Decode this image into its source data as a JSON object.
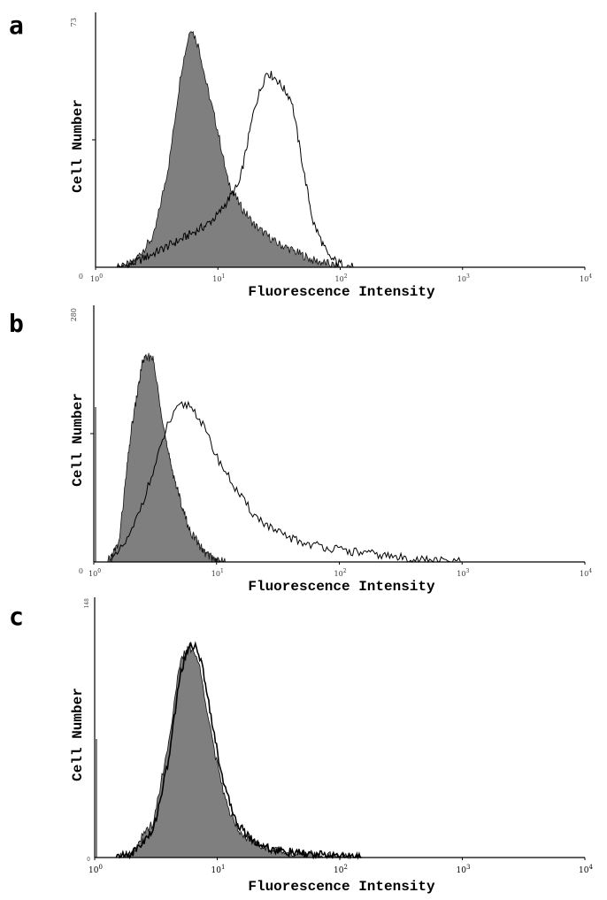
{
  "chart_data": [
    {
      "panel": "a",
      "type": "area",
      "xscale": "log",
      "xlim": [
        1,
        10000
      ],
      "ylim": [
        0,
        73
      ],
      "ytick_labels": [
        "0",
        "73"
      ],
      "xticks": [
        {
          "base": "10",
          "exp": "0"
        },
        {
          "base": "10",
          "exp": "1"
        },
        {
          "base": "10",
          "exp": "2"
        },
        {
          "base": "10",
          "exp": "3"
        },
        {
          "base": "10",
          "exp": "4"
        }
      ],
      "xlabel": "Fluorescence Intensity",
      "ylabel": "Cell Number",
      "series": [
        {
          "style": "filled-gray",
          "x": [
            1.5,
            2,
            3,
            4,
            5,
            6,
            7,
            8,
            10,
            12,
            15,
            20,
            30,
            40,
            60,
            80,
            100
          ],
          "y": [
            0,
            1,
            9,
            30,
            56,
            69,
            63,
            53,
            39,
            25,
            18,
            12,
            7,
            5,
            2,
            1,
            0
          ]
        },
        {
          "style": "outline",
          "x": [
            1.5,
            2,
            3,
            5,
            8,
            10,
            15,
            20,
            25,
            30,
            40,
            50,
            60,
            80,
            100,
            130
          ],
          "y": [
            0,
            1,
            4,
            8,
            12,
            15,
            24,
            46,
            56,
            54,
            48,
            28,
            13,
            3,
            1,
            0
          ]
        }
      ]
    },
    {
      "panel": "b",
      "type": "area",
      "xscale": "log",
      "xlim": [
        1,
        10000
      ],
      "ylim": [
        0,
        280
      ],
      "ytick_labels": [
        "0",
        "280"
      ],
      "xticks": [
        {
          "base": "10",
          "exp": "0"
        },
        {
          "base": "10",
          "exp": "1"
        },
        {
          "base": "10",
          "exp": "2"
        },
        {
          "base": "10",
          "exp": "3"
        },
        {
          "base": "10",
          "exp": "4"
        }
      ],
      "xlabel": "Fluorescence Intensity",
      "ylabel": "Cell Number",
      "series": [
        {
          "style": "filled-gray",
          "x": [
            1.3,
            1.6,
            2,
            2.5,
            3,
            3.5,
            4,
            5,
            6,
            8,
            10,
            12
          ],
          "y": [
            0,
            20,
            140,
            220,
            225,
            170,
            120,
            70,
            35,
            10,
            2,
            0
          ]
        },
        {
          "style": "outline",
          "x": [
            1.3,
            1.5,
            2,
            3,
            4,
            5,
            6,
            7,
            8,
            10,
            15,
            20,
            30,
            50,
            80,
            100,
            200,
            300,
            500,
            1000
          ],
          "y": [
            0,
            5,
            30,
            95,
            150,
            170,
            172,
            160,
            145,
            115,
            75,
            52,
            33,
            21,
            16,
            13,
            8,
            5,
            2,
            0
          ]
        }
      ]
    },
    {
      "panel": "c",
      "type": "area",
      "xscale": "log",
      "xlim": [
        1,
        10000
      ],
      "ylim": [
        0,
        148
      ],
      "ytick_labels": [
        "0",
        "148"
      ],
      "xticks": [
        {
          "base": "10",
          "exp": "0"
        },
        {
          "base": "10",
          "exp": "1"
        },
        {
          "base": "10",
          "exp": "2"
        },
        {
          "base": "10",
          "exp": "3"
        },
        {
          "base": "10",
          "exp": "4"
        }
      ],
      "xlabel": "Fluorescence Intensity",
      "ylabel": "Cell Number",
      "series": [
        {
          "style": "filled-gray",
          "x": [
            1.5,
            2,
            3,
            4,
            5,
            6,
            7,
            8,
            10,
            12,
            15,
            20,
            30,
            50,
            100,
            150
          ],
          "y": [
            0,
            3,
            20,
            65,
            112,
            120,
            112,
            90,
            52,
            30,
            16,
            8,
            4,
            2,
            0.5,
            0
          ]
        },
        {
          "style": "outline",
          "x": [
            1.5,
            2,
            3,
            4,
            5,
            6,
            7,
            8,
            10,
            12,
            15,
            20,
            30,
            50,
            100,
            150
          ],
          "y": [
            0,
            2,
            15,
            55,
            105,
            122,
            118,
            100,
            60,
            35,
            18,
            9,
            4,
            2,
            0.5,
            0
          ]
        }
      ]
    }
  ]
}
